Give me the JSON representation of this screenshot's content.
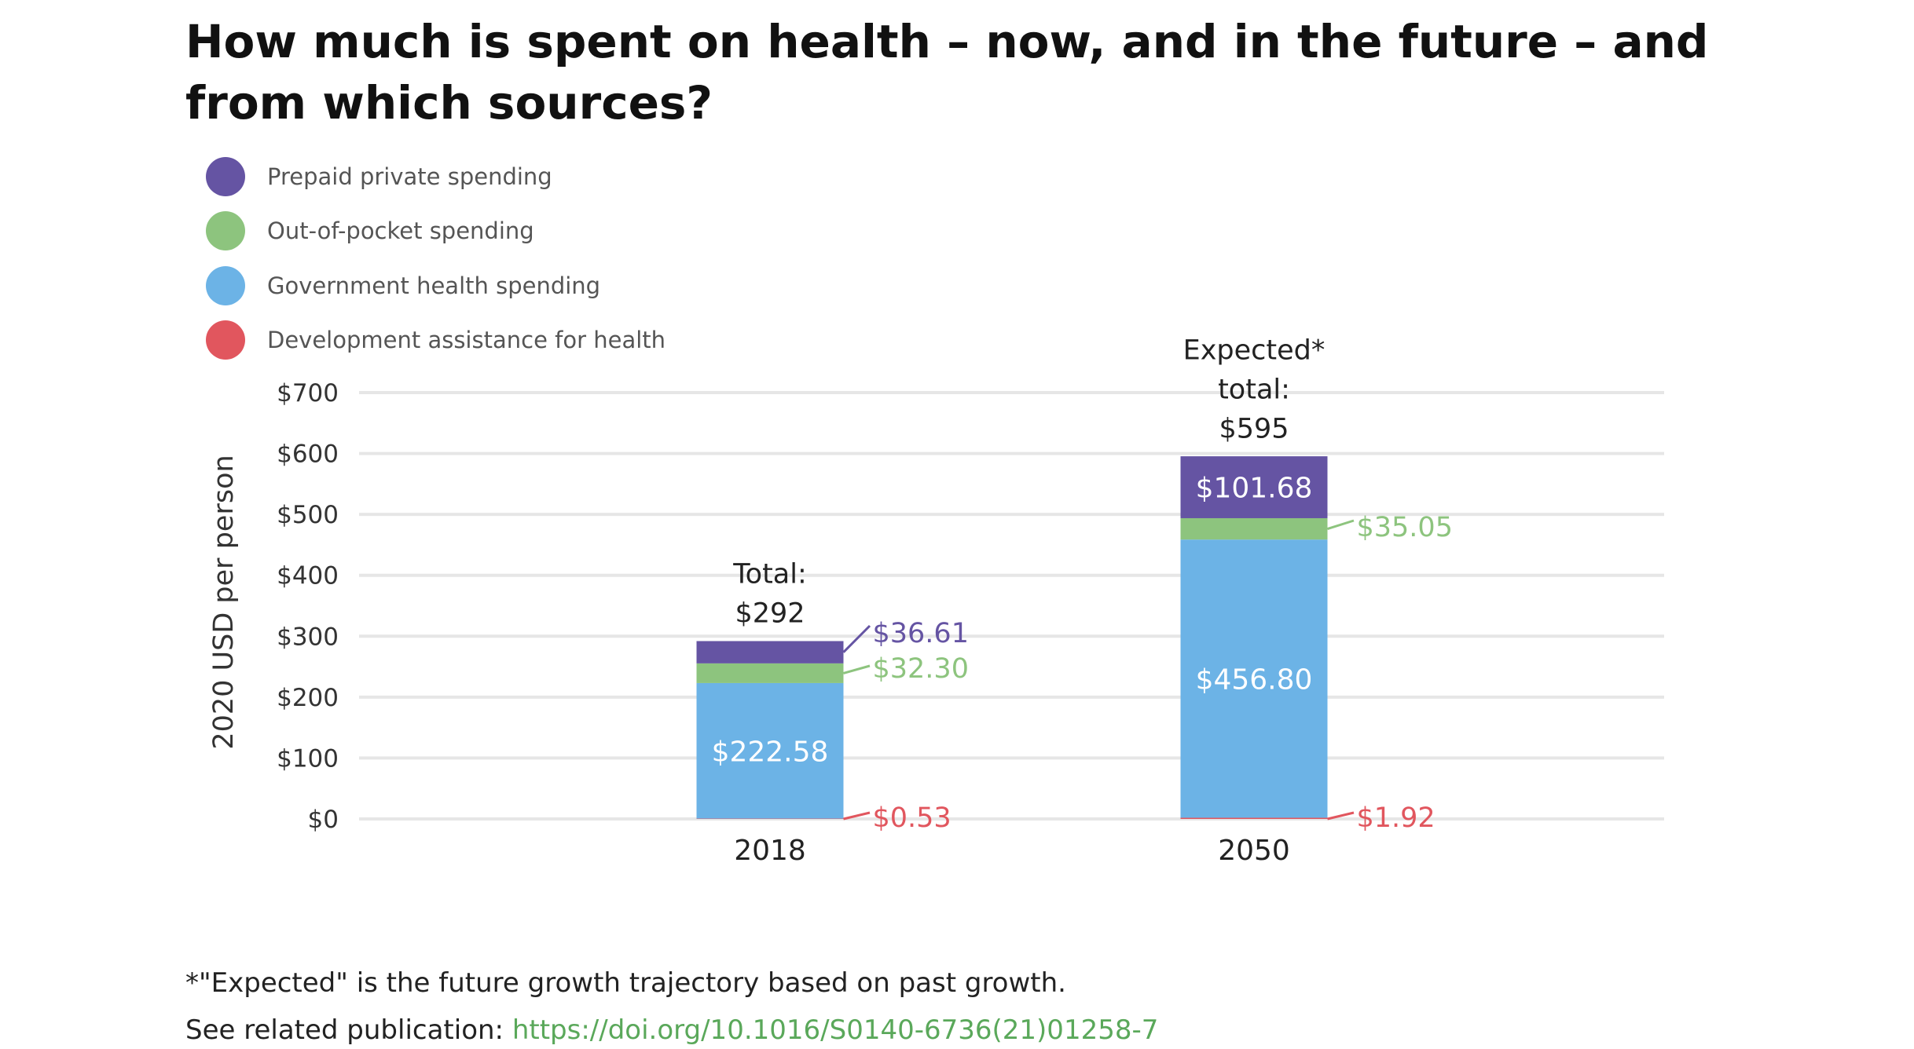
{
  "title": "How much is spent on health – now, and in the future – and from which sources?",
  "colors": {
    "prepaid": "#6554a3",
    "oop": "#8dc47e",
    "gov": "#6cb3e6",
    "dah": "#e1565e",
    "grid": "#e6e6e6",
    "link": "#5aa85a"
  },
  "legend": [
    {
      "key": "prepaid",
      "label": "Prepaid private spending"
    },
    {
      "key": "oop",
      "label": "Out-of-pocket spending"
    },
    {
      "key": "gov",
      "label": "Government health spending"
    },
    {
      "key": "dah",
      "label": "Development assistance for health"
    }
  ],
  "chart_data": {
    "type": "bar",
    "stacked": true,
    "title": "How much is spent on health – now, and in the future – and from which sources?",
    "xlabel": "",
    "ylabel": "2020 USD per person",
    "ylim": [
      0,
      700
    ],
    "yticks": [
      0,
      100,
      200,
      300,
      400,
      500,
      600,
      700
    ],
    "ytick_labels": [
      "$0",
      "$100",
      "$200",
      "$300",
      "$400",
      "$500",
      "$600",
      "$700"
    ],
    "grid": true,
    "legend_position": "top-left",
    "categories": [
      "2018",
      "2050"
    ],
    "series": [
      {
        "key": "dah",
        "name": "Development assistance for health",
        "values": [
          0.53,
          1.92
        ],
        "labels": [
          "$0.53",
          "$1.92"
        ]
      },
      {
        "key": "gov",
        "name": "Government health spending",
        "values": [
          222.58,
          456.8
        ],
        "labels": [
          "$222.58",
          "$456.80"
        ]
      },
      {
        "key": "oop",
        "name": "Out-of-pocket spending",
        "values": [
          32.3,
          35.05
        ],
        "labels": [
          "$32.30",
          "$35.05"
        ]
      },
      {
        "key": "prepaid",
        "name": "Prepaid private spending",
        "values": [
          36.61,
          101.68
        ],
        "labels": [
          "$36.61",
          "$101.68"
        ]
      }
    ],
    "totals": [
      {
        "value": 292,
        "label_lines": [
          "Total:",
          "$292"
        ]
      },
      {
        "value": 595,
        "label_lines": [
          "Expected*",
          "total:",
          "$595"
        ]
      }
    ]
  },
  "footer": {
    "note": "*\"Expected\" is the future growth trajectory based on past growth.",
    "publication_prefix": "See related publication: ",
    "publication_link": "https://doi.org/10.1016/S0140-6736(21)01258-7"
  }
}
